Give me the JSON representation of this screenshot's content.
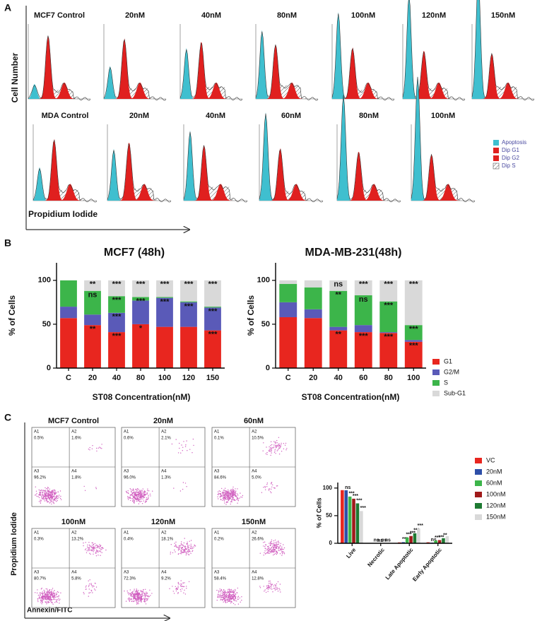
{
  "panel_labels": [
    "A",
    "B",
    "C"
  ],
  "panel_a": {
    "y_axis_label": "Cell Number",
    "x_axis_label": "Propidium Iodide",
    "rows": [
      {
        "titles": [
          "MCF7 Control",
          "20nM",
          "40nM",
          "80nM",
          "100nM",
          "120nM",
          "150nM"
        ]
      },
      {
        "titles": [
          "MDA Control",
          "20nM",
          "40nM",
          "60nM",
          "80nM",
          "100nM"
        ]
      }
    ],
    "legend": [
      {
        "name": "Apoptosis",
        "color": "#3fbfcf"
      },
      {
        "name": "Dip G1",
        "color": "#e0201f"
      },
      {
        "name": "Dip G2",
        "color": "#e0201f"
      },
      {
        "name": "Dip S",
        "color": "#555555"
      }
    ]
  },
  "panel_c": {
    "y_axis_label": "Propidium Iodide",
    "x_axis_label": "Annexin/FITC",
    "plots": [
      {
        "title": "MCF7 Control",
        "quadrants": [
          {
            "label": "A1",
            "value": "0.5%"
          },
          {
            "label": "A2",
            "value": "1.6%"
          },
          {
            "label": "A3",
            "value": "96.2%"
          },
          {
            "label": "A4",
            "value": "1.8%"
          }
        ]
      },
      {
        "title": "20nM",
        "quadrants": [
          {
            "label": "A1",
            "value": "0.6%"
          },
          {
            "label": "A2",
            "value": "2.1%"
          },
          {
            "label": "A3",
            "value": "96.0%"
          },
          {
            "label": "A4",
            "value": "1.3%"
          }
        ]
      },
      {
        "title": "60nM",
        "quadrants": [
          {
            "label": "A1",
            "value": "0.1%"
          },
          {
            "label": "A2",
            "value": "10.5%"
          },
          {
            "label": "A3",
            "value": "84.6%"
          },
          {
            "label": "A4",
            "value": "5.0%"
          }
        ]
      },
      {
        "title": "100nM",
        "quadrants": [
          {
            "label": "A1",
            "value": "0.3%"
          },
          {
            "label": "A2",
            "value": "13.2%"
          },
          {
            "label": "A3",
            "value": "80.7%"
          },
          {
            "label": "A4",
            "value": "5.8%"
          }
        ]
      },
      {
        "title": "120nM",
        "quadrants": [
          {
            "label": "A1",
            "value": "0.4%"
          },
          {
            "label": "A2",
            "value": "18.1%"
          },
          {
            "label": "A3",
            "value": "72.3%"
          },
          {
            "label": "A4",
            "value": "9.2%"
          }
        ]
      },
      {
        "title": "150nM",
        "quadrants": [
          {
            "label": "A1",
            "value": "0.2%"
          },
          {
            "label": "A2",
            "value": "26.6%"
          },
          {
            "label": "A3",
            "value": "58.4%"
          },
          {
            "label": "A4",
            "value": "12.8%"
          }
        ]
      }
    ]
  },
  "chart_data": [
    {
      "type": "stacked_bar",
      "title": "MCF7 (48h)",
      "x_label": "ST08 Concentration(nM)",
      "y_label": "% of Cells",
      "categories": [
        "C",
        "20",
        "40",
        "80",
        "100",
        "120",
        "150"
      ],
      "series": [
        {
          "name": "G1",
          "color": "#e8261f",
          "values": [
            57,
            49,
            41,
            50,
            47,
            47,
            43
          ],
          "significance": [
            null,
            "**",
            "***",
            "*",
            null,
            null,
            "***"
          ]
        },
        {
          "name": "G2/M",
          "color": "#5a5ab8",
          "values": [
            13,
            12,
            22,
            27,
            33,
            28,
            26
          ],
          "significance": [
            null,
            null,
            "***",
            null,
            "***",
            "***",
            "***"
          ]
        },
        {
          "name": "S",
          "color": "#3cb54a",
          "values": [
            30,
            27,
            19,
            4,
            1,
            1,
            1
          ],
          "significance": [
            null,
            "ns",
            "***",
            "***",
            null,
            null,
            null
          ]
        },
        {
          "name": "Sub-G1",
          "color": "#d9d9d9",
          "values": [
            0,
            12,
            18,
            19,
            19,
            24,
            30
          ],
          "significance": [
            null,
            "**",
            "***",
            "***",
            "***",
            "***",
            "***"
          ]
        }
      ],
      "ylim": [
        0,
        120
      ],
      "yticks": [
        0,
        50,
        100
      ]
    },
    {
      "type": "stacked_bar",
      "title": "MDA-MB-231(48h)",
      "x_label": "ST08 Concentration(nM)",
      "y_label": "% of Cells",
      "categories": [
        "C",
        "20",
        "40",
        "60",
        "80",
        "100"
      ],
      "series": [
        {
          "name": "G1",
          "color": "#e8261f",
          "values": [
            58,
            57,
            43,
            41,
            40,
            30
          ],
          "significance": [
            null,
            null,
            "**",
            "***",
            "***",
            "***"
          ]
        },
        {
          "name": "G2/M",
          "color": "#5a5ab8",
          "values": [
            17,
            10,
            4,
            8,
            1,
            2
          ]
        },
        {
          "name": "S",
          "color": "#3cb54a",
          "values": [
            21,
            25,
            41,
            34,
            35,
            17
          ],
          "significance": [
            null,
            null,
            "**",
            "ns",
            "***",
            "***"
          ]
        },
        {
          "name": "Sub-G1",
          "color": "#d9d9d9",
          "values": [
            4,
            8,
            12,
            17,
            24,
            51
          ],
          "significance": [
            null,
            null,
            "ns",
            "***",
            "***",
            "***"
          ]
        }
      ],
      "ylim": [
        0,
        120
      ],
      "yticks": [
        0,
        50,
        100
      ],
      "legend": "right"
    },
    {
      "type": "grouped_bar",
      "y_label": "% of Cells",
      "categories": [
        "Live",
        "Necrotic",
        "Late Apoptotic",
        "Early Apoptotic"
      ],
      "series": [
        {
          "name": "VC",
          "color": "#e8261f",
          "values": [
            96.2,
            0.5,
            1.6,
            1.8
          ]
        },
        {
          "name": "20nM",
          "color": "#2e4fa8",
          "values": [
            96.0,
            0.6,
            2.1,
            1.3
          ],
          "significance": [
            "ns",
            "ns",
            "***",
            "ns"
          ]
        },
        {
          "name": "60nM",
          "color": "#3cb54a",
          "values": [
            84.6,
            0.1,
            10.5,
            5.0
          ],
          "significance": [
            "***",
            "ns",
            "***",
            "***"
          ]
        },
        {
          "name": "100nM",
          "color": "#a01a1a",
          "values": [
            80.7,
            0.3,
            13.2,
            5.8
          ],
          "significance": [
            "***",
            "ns",
            "***",
            "***"
          ]
        },
        {
          "name": "120nM",
          "color": "#1e7a32",
          "values": [
            72.3,
            0.4,
            18.1,
            9.2
          ],
          "significance": [
            "***",
            "ns",
            "***",
            "**"
          ]
        },
        {
          "name": "150nM",
          "color": "#d9d9d9",
          "values": [
            58.4,
            0.2,
            26.6,
            12.8
          ],
          "significance": [
            "***",
            null,
            "***",
            null
          ]
        }
      ],
      "ylim": [
        0,
        110
      ],
      "yticks": [
        0,
        50,
        100
      ],
      "legend": "right"
    }
  ]
}
